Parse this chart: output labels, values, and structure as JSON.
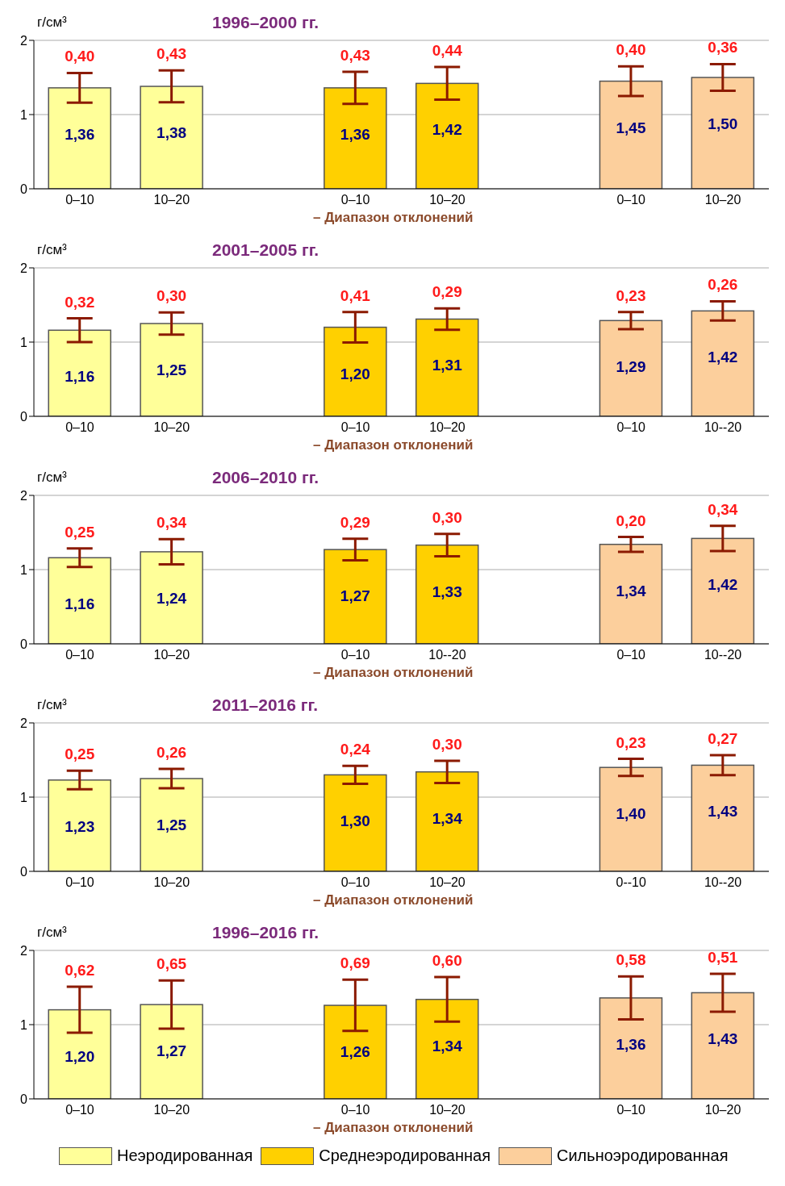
{
  "chart_data": [
    {
      "type": "bar",
      "title": "1996–2000 гг.",
      "ylabel": "г/см³",
      "categories": [
        "0–10",
        "10–20",
        null,
        "0–10",
        "10–20",
        null,
        "0–10",
        "10–20"
      ],
      "series": [
        {
          "color": "#ffff99",
          "values": [
            1.36,
            1.38,
            null,
            null,
            null,
            null,
            null,
            null
          ],
          "value_labels": [
            "1,36",
            "1,38",
            null,
            null,
            null,
            null,
            null,
            null
          ],
          "errors": [
            0.2,
            0.215,
            null,
            null,
            null,
            null,
            null,
            null
          ]
        },
        {
          "color": "#ffd000",
          "values": [
            null,
            null,
            null,
            1.36,
            1.42,
            null,
            null,
            null
          ],
          "value_labels": [
            null,
            null,
            null,
            "1,36",
            "1,42",
            null,
            null,
            null
          ],
          "errors": [
            null,
            null,
            null,
            0.215,
            0.22,
            null,
            null,
            null
          ]
        },
        {
          "color": "#fccf9c",
          "values": [
            null,
            null,
            null,
            null,
            null,
            null,
            1.45,
            1.5
          ],
          "value_labels": [
            null,
            null,
            null,
            null,
            null,
            null,
            "1,45",
            "1,50"
          ],
          "errors": [
            null,
            null,
            null,
            null,
            null,
            null,
            0.2,
            0.18
          ]
        }
      ],
      "annotations": [
        "0,40",
        "0,43",
        "0,43",
        "0,44",
        "0,40",
        "0,36",
        "– Диапазон отклонений"
      ],
      "ylim": [
        0,
        2
      ],
      "yticks": [
        0,
        1,
        2
      ],
      "grid": "y"
    },
    {
      "type": "bar",
      "title": "2001–2005 гг.",
      "ylabel": "г/см³",
      "categories": [
        "0–10",
        "10–20",
        null,
        "0–10",
        "10–20",
        null,
        "0–10",
        "10--20"
      ],
      "series": [
        {
          "color": "#ffff99",
          "values": [
            1.16,
            1.25,
            null,
            null,
            null,
            null,
            null,
            null
          ],
          "value_labels": [
            "1,16",
            "1,25",
            null,
            null,
            null,
            null,
            null,
            null
          ],
          "errors": [
            0.16,
            0.15,
            null,
            null,
            null,
            null,
            null,
            null
          ]
        },
        {
          "color": "#ffd000",
          "values": [
            null,
            null,
            null,
            1.2,
            1.31,
            null,
            null,
            null
          ],
          "value_labels": [
            null,
            null,
            null,
            "1,20",
            "1,31",
            null,
            null,
            null
          ],
          "errors": [
            null,
            null,
            null,
            0.205,
            0.145,
            null,
            null,
            null
          ]
        },
        {
          "color": "#fccf9c",
          "values": [
            null,
            null,
            null,
            null,
            null,
            null,
            1.29,
            1.42
          ],
          "value_labels": [
            null,
            null,
            null,
            null,
            null,
            null,
            "1,29",
            "1,42"
          ],
          "errors": [
            null,
            null,
            null,
            null,
            null,
            null,
            0.115,
            0.13
          ]
        }
      ],
      "annotations": [
        "0,32",
        "0,30",
        "0,41",
        "0,29",
        "0,23",
        "0,26",
        "– Диапазон отклонений"
      ],
      "ylim": [
        0,
        2
      ],
      "yticks": [
        0,
        1,
        2
      ],
      "grid": "y"
    },
    {
      "type": "bar",
      "title": "2006–2010 гг.",
      "ylabel": "г/см³",
      "categories": [
        "0–10",
        "10–20",
        null,
        "0–10",
        "10--20",
        null,
        "0–10",
        "10--20"
      ],
      "series": [
        {
          "color": "#ffff99",
          "values": [
            1.16,
            1.24,
            null,
            null,
            null,
            null,
            null,
            null
          ],
          "value_labels": [
            "1,16",
            "1,24",
            null,
            null,
            null,
            null,
            null,
            null
          ],
          "errors": [
            0.125,
            0.17,
            null,
            null,
            null,
            null,
            null,
            null
          ]
        },
        {
          "color": "#ffd000",
          "values": [
            null,
            null,
            null,
            1.27,
            1.33,
            null,
            null,
            null
          ],
          "value_labels": [
            null,
            null,
            null,
            "1,27",
            "1,33",
            null,
            null,
            null
          ],
          "errors": [
            null,
            null,
            null,
            0.145,
            0.15,
            null,
            null,
            null
          ]
        },
        {
          "color": "#fccf9c",
          "values": [
            null,
            null,
            null,
            null,
            null,
            null,
            1.34,
            1.42
          ],
          "value_labels": [
            null,
            null,
            null,
            null,
            null,
            null,
            "1,34",
            "1,42"
          ],
          "errors": [
            null,
            null,
            null,
            null,
            null,
            null,
            0.1,
            0.17
          ]
        }
      ],
      "annotations": [
        "0,25",
        "0,34",
        "0,29",
        "0,30",
        "0,20",
        "0,34",
        "– Диапазон отклонений"
      ],
      "ylim": [
        0,
        2
      ],
      "yticks": [
        0,
        1,
        2
      ],
      "grid": "y"
    },
    {
      "type": "bar",
      "title": "2011–2016 гг.",
      "ylabel": "г/см³",
      "categories": [
        "0–10",
        "10–20",
        null,
        "0–10",
        "10–20",
        null,
        "0--10",
        "10--20"
      ],
      "series": [
        {
          "color": "#ffff99",
          "values": [
            1.23,
            1.25,
            null,
            null,
            null,
            null,
            null,
            null
          ],
          "value_labels": [
            "1,23",
            "1,25",
            null,
            null,
            null,
            null,
            null,
            null
          ],
          "errors": [
            0.125,
            0.13,
            null,
            null,
            null,
            null,
            null,
            null
          ]
        },
        {
          "color": "#ffd000",
          "values": [
            null,
            null,
            null,
            1.3,
            1.34,
            null,
            null,
            null
          ],
          "value_labels": [
            null,
            null,
            null,
            "1,30",
            "1,34",
            null,
            null,
            null
          ],
          "errors": [
            null,
            null,
            null,
            0.12,
            0.15,
            null,
            null,
            null
          ]
        },
        {
          "color": "#fccf9c",
          "values": [
            null,
            null,
            null,
            null,
            null,
            null,
            1.4,
            1.43
          ],
          "value_labels": [
            null,
            null,
            null,
            null,
            null,
            null,
            "1,40",
            "1,43"
          ],
          "errors": [
            null,
            null,
            null,
            null,
            null,
            null,
            0.115,
            0.135
          ]
        }
      ],
      "annotations": [
        "0,25",
        "0,26",
        "0,24",
        "0,30",
        "0,23",
        "0,27",
        "– Диапазон отклонений"
      ],
      "ylim": [
        0,
        2
      ],
      "yticks": [
        0,
        1,
        2
      ],
      "grid": "y"
    },
    {
      "type": "bar",
      "title": "1996–2016 гг.",
      "ylabel": "г/см³",
      "categories": [
        "0–10",
        "10–20",
        null,
        "0–10",
        "10–20",
        null,
        "0–10",
        "10–20"
      ],
      "series": [
        {
          "name": "Неэродированная",
          "color": "#ffff99",
          "values": [
            1.2,
            1.27,
            null,
            null,
            null,
            null,
            null,
            null
          ],
          "value_labels": [
            "1,20",
            "1,27",
            null,
            null,
            null,
            null,
            null,
            null
          ],
          "errors": [
            0.31,
            0.325,
            null,
            null,
            null,
            null,
            null,
            null
          ]
        },
        {
          "name": "Среднеэродированная",
          "color": "#ffd000",
          "values": [
            null,
            null,
            null,
            1.26,
            1.34,
            null,
            null,
            null
          ],
          "value_labels": [
            null,
            null,
            null,
            "1,26",
            "1,34",
            null,
            null,
            null
          ],
          "errors": [
            null,
            null,
            null,
            0.345,
            0.3,
            null,
            null,
            null
          ]
        },
        {
          "name": "Сильноэродированная",
          "color": "#fccf9c",
          "values": [
            null,
            null,
            null,
            null,
            null,
            null,
            1.36,
            1.43
          ],
          "value_labels": [
            null,
            null,
            null,
            null,
            null,
            null,
            "1,36",
            "1,43"
          ],
          "errors": [
            null,
            null,
            null,
            null,
            null,
            null,
            0.29,
            0.255
          ]
        }
      ],
      "annotations": [
        "0,62",
        "0,65",
        "0,69",
        "0,60",
        "0,58",
        "0,51",
        "– Диапазон отклонений"
      ],
      "ylim": [
        0,
        2
      ],
      "yticks": [
        0,
        1,
        2
      ],
      "grid": "y",
      "legend": "bottom"
    }
  ]
}
